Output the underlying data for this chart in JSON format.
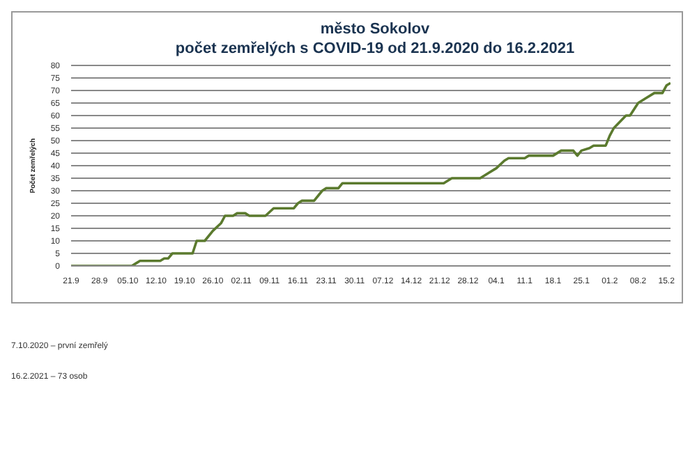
{
  "chart_data": {
    "type": "line",
    "title": "město Sokolov",
    "subtitle": "počet zemřelých s COVID-19 od 21.9.2020 do 16.2.2021",
    "ylabel": "Počet zemřelých",
    "annotations": [
      "7.10.2020 – první zemřelý",
      "16.2.2021 – 73 osob"
    ],
    "x": [
      "2020-09-21",
      "2020-10-06",
      "2020-10-07",
      "2020-10-08",
      "2020-10-13",
      "2020-10-14",
      "2020-10-15",
      "2020-10-16",
      "2020-10-21",
      "2020-10-22",
      "2020-10-24",
      "2020-10-26",
      "2020-10-28",
      "2020-10-29",
      "2020-10-31",
      "2020-11-01",
      "2020-11-03",
      "2020-11-04",
      "2020-11-08",
      "2020-11-10",
      "2020-11-15",
      "2020-11-16",
      "2020-11-17",
      "2020-11-20",
      "2020-11-22",
      "2020-11-23",
      "2020-11-26",
      "2020-11-27",
      "2020-12-22",
      "2020-12-24",
      "2020-12-31",
      "2021-01-02",
      "2021-01-04",
      "2021-01-06",
      "2021-01-07",
      "2021-01-11",
      "2021-01-12",
      "2021-01-18",
      "2021-01-20",
      "2021-01-23",
      "2021-01-24",
      "2021-01-25",
      "2021-01-27",
      "2021-01-28",
      "2021-01-31",
      "2021-02-01",
      "2021-02-02",
      "2021-02-05",
      "2021-02-06",
      "2021-02-08",
      "2021-02-10",
      "2021-02-12",
      "2021-02-14",
      "2021-02-15",
      "2021-02-16"
    ],
    "series": [
      {
        "color": "#5b7a2e",
        "values": [
          0,
          0,
          1,
          2,
          2,
          3,
          3,
          5,
          5,
          10,
          10,
          14,
          17,
          20,
          20,
          21,
          21,
          20,
          20,
          23,
          23,
          25,
          26,
          26,
          30,
          31,
          31,
          33,
          33,
          35,
          35,
          37,
          39,
          42,
          43,
          43,
          44,
          44,
          46,
          46,
          44,
          46,
          47,
          48,
          48,
          52,
          55,
          60,
          60,
          65,
          67,
          69,
          69,
          72,
          73
        ]
      }
    ],
    "xlim": [
      "2020-09-21",
      "2021-02-16"
    ],
    "xticks": [
      {
        "value": "2020-09-21",
        "label": "21.9"
      },
      {
        "value": "2020-09-28",
        "label": "28.9"
      },
      {
        "value": "2020-10-05",
        "label": "05.10"
      },
      {
        "value": "2020-10-12",
        "label": "12.10"
      },
      {
        "value": "2020-10-19",
        "label": "19.10"
      },
      {
        "value": "2020-10-26",
        "label": "26.10"
      },
      {
        "value": "2020-11-02",
        "label": "02.11"
      },
      {
        "value": "2020-11-09",
        "label": "09.11"
      },
      {
        "value": "2020-11-16",
        "label": "16.11"
      },
      {
        "value": "2020-11-23",
        "label": "23.11"
      },
      {
        "value": "2020-11-30",
        "label": "30.11"
      },
      {
        "value": "2020-12-07",
        "label": "07.12"
      },
      {
        "value": "2020-12-14",
        "label": "14.12"
      },
      {
        "value": "2020-12-21",
        "label": "21.12"
      },
      {
        "value": "2020-12-28",
        "label": "28.12"
      },
      {
        "value": "2021-01-04",
        "label": "04.1"
      },
      {
        "value": "2021-01-11",
        "label": "11.1"
      },
      {
        "value": "2021-01-18",
        "label": "18.1"
      },
      {
        "value": "2021-01-25",
        "label": "25.1"
      },
      {
        "value": "2021-02-01",
        "label": "01.2"
      },
      {
        "value": "2021-02-08",
        "label": "08.2"
      },
      {
        "value": "2021-02-15",
        "label": "15.2"
      }
    ],
    "ylim": [
      0,
      80
    ],
    "yticks": [
      0,
      5,
      10,
      15,
      20,
      25,
      30,
      35,
      40,
      45,
      50,
      55,
      60,
      65,
      70,
      75,
      80
    ],
    "grid": "y",
    "marker": "none",
    "line_style": "solid"
  }
}
